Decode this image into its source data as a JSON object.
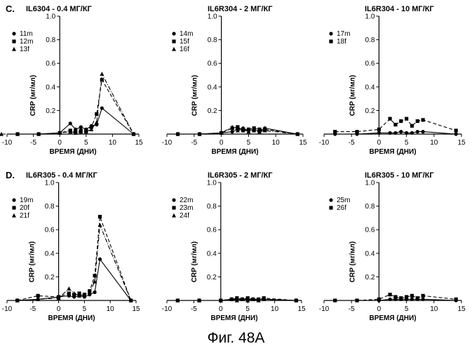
{
  "caption": "Фиг. 48А",
  "rows": [
    {
      "letter": "C."
    },
    {
      "letter": "D."
    }
  ],
  "chart_data": [
    {
      "type": "line",
      "title": "IL6304 - 0.4 МГ/КГ",
      "xlabel": "ВРЕМЯ (ДНИ)",
      "ylabel": "CRP (мг/мл)",
      "xlim": [
        -10,
        15
      ],
      "ylim": [
        0,
        1.0
      ],
      "xticks": [
        "-10",
        "-5",
        "0",
        "5",
        "10",
        "15"
      ],
      "yticks": [
        "0.2",
        "0.4",
        "0.6",
        "0.8",
        "1.0"
      ],
      "series": [
        {
          "name": "11m",
          "marker": "circle",
          "dash": "solid",
          "x": [
            -8,
            -4,
            0,
            2,
            3,
            4,
            5,
            6,
            7,
            8,
            14
          ],
          "y": [
            0.0,
            0.0,
            0.01,
            0.09,
            0.04,
            0.06,
            0.04,
            0.07,
            0.08,
            0.22,
            0.0
          ]
        },
        {
          "name": "12m",
          "marker": "square",
          "dash": "dashed",
          "x": [
            -8,
            -4,
            0,
            2,
            3,
            4,
            5,
            6,
            7,
            8,
            14
          ],
          "y": [
            0.0,
            0.0,
            0.01,
            0.03,
            0.02,
            0.03,
            0.03,
            0.06,
            0.17,
            0.46,
            0.0
          ]
        },
        {
          "name": "13f",
          "marker": "triangle",
          "dash": "dashdot",
          "x": [
            -15,
            -8,
            -4,
            0,
            2,
            3,
            4,
            5,
            6,
            7,
            8,
            14
          ],
          "y": [
            0.0,
            0.0,
            0.0,
            0.01,
            0.02,
            0.01,
            0.02,
            0.02,
            0.04,
            0.1,
            0.51,
            0.0
          ]
        }
      ]
    },
    {
      "type": "line",
      "title": "IL6R304 - 2 МГ/КГ",
      "xlabel": "ВРЕМЯ (ДНИ)",
      "ylabel": "CRP (мг/мл)",
      "xlim": [
        -10,
        15
      ],
      "ylim": [
        0,
        1.0
      ],
      "xticks": [
        "-10",
        "-5",
        "0",
        "5",
        "10",
        "15"
      ],
      "yticks": [
        "0.2",
        "0.4",
        "0.6",
        "0.8",
        "1.0"
      ],
      "series": [
        {
          "name": "14m",
          "marker": "circle",
          "dash": "solid",
          "x": [
            -8,
            -4,
            0,
            2,
            3,
            4,
            5,
            6,
            7,
            8,
            14
          ],
          "y": [
            0.0,
            0.0,
            0.01,
            0.02,
            0.04,
            0.05,
            0.03,
            0.04,
            0.02,
            0.05,
            0.0
          ]
        },
        {
          "name": "15f",
          "marker": "square",
          "dash": "dashed",
          "x": [
            -8,
            -4,
            0,
            2,
            3,
            4,
            5,
            6,
            7,
            8,
            14
          ],
          "y": [
            0.0,
            0.0,
            0.01,
            0.05,
            0.06,
            0.03,
            0.04,
            0.05,
            0.04,
            0.04,
            0.0
          ]
        },
        {
          "name": "16f",
          "marker": "triangle",
          "dash": "dashdot",
          "x": [
            -8,
            -4,
            0,
            2,
            3,
            4,
            5,
            6,
            7,
            8,
            14
          ],
          "y": [
            0.0,
            0.0,
            0.01,
            0.06,
            0.03,
            0.04,
            0.02,
            0.03,
            0.02,
            0.03,
            0.0
          ]
        }
      ]
    },
    {
      "type": "line",
      "title": "IL6R304 - 10 МГ/КГ",
      "xlabel": "ВРЕМЯ (ДНИ)",
      "ylabel": "CRP (мг/мл)",
      "xlim": [
        -10,
        15
      ],
      "ylim": [
        0,
        1.0
      ],
      "xticks": [
        "-10",
        "-5",
        "0",
        "5",
        "10",
        "15"
      ],
      "yticks": [
        "0.2",
        "0.4",
        "0.6",
        "0.8",
        "1.0"
      ],
      "series": [
        {
          "name": "17m",
          "marker": "circle",
          "dash": "solid",
          "x": [
            -8,
            -4,
            0,
            2,
            3,
            4,
            5,
            6,
            7,
            8,
            14
          ],
          "y": [
            0.0,
            0.0,
            0.01,
            0.01,
            0.01,
            0.02,
            0.01,
            0.01,
            0.02,
            0.02,
            0.0
          ]
        },
        {
          "name": "18f",
          "marker": "square",
          "dash": "dashed",
          "x": [
            -8,
            -4,
            0,
            2,
            3,
            4,
            5,
            6,
            7,
            8,
            14
          ],
          "y": [
            0.02,
            0.02,
            0.04,
            0.13,
            0.08,
            0.11,
            0.13,
            0.07,
            0.11,
            0.12,
            0.03
          ]
        }
      ]
    },
    {
      "type": "line",
      "title": "IL6R305 - 0.4 МГ/КГ",
      "xlabel": "ВРЕМЯ (ДНИ)",
      "ylabel": "CRP (мг/мл)",
      "xlim": [
        -10,
        15
      ],
      "ylim": [
        0,
        1.0
      ],
      "xticks": [
        "-10",
        "-5",
        "0",
        "5",
        "10",
        "15"
      ],
      "yticks": [
        "0.2",
        "0.4",
        "0.6",
        "0.8",
        "1.0"
      ],
      "series": [
        {
          "name": "19m",
          "marker": "circle",
          "dash": "solid",
          "x": [
            -8,
            -4,
            0,
            2,
            3,
            4,
            5,
            6,
            7,
            8,
            14
          ],
          "y": [
            0.0,
            0.01,
            0.03,
            0.04,
            0.03,
            0.04,
            0.03,
            0.05,
            0.07,
            0.35,
            0.0
          ]
        },
        {
          "name": "20f",
          "marker": "square",
          "dash": "dashed",
          "x": [
            -8,
            -4,
            0,
            2,
            3,
            4,
            5,
            6,
            7,
            8,
            14
          ],
          "y": [
            0.0,
            0.04,
            0.03,
            0.06,
            0.05,
            0.06,
            0.05,
            0.08,
            0.21,
            0.71,
            0.0
          ]
        },
        {
          "name": "21f",
          "marker": "triangle",
          "dash": "dashdot",
          "x": [
            -8,
            -4,
            0,
            2,
            3,
            4,
            5,
            6,
            7,
            8,
            14
          ],
          "y": [
            0.0,
            0.01,
            0.02,
            0.1,
            0.06,
            0.04,
            0.05,
            0.07,
            0.16,
            0.64,
            0.0
          ]
        }
      ]
    },
    {
      "type": "line",
      "title": "IL6R305 - 2 МГ/КГ",
      "xlabel": "ВРЕМЯ (ДНИ)",
      "ylabel": "CRP (мг/мл)",
      "xlim": [
        -10,
        15
      ],
      "ylim": [
        0,
        1.0
      ],
      "xticks": [
        "-10",
        "-5",
        "0",
        "5",
        "10",
        "15"
      ],
      "yticks": [
        "0.2",
        "0.4",
        "0.6",
        "0.8",
        "1.0"
      ],
      "series": [
        {
          "name": "22m",
          "marker": "circle",
          "dash": "solid",
          "x": [
            -8,
            -4,
            0,
            2,
            3,
            4,
            5,
            6,
            7,
            8,
            14
          ],
          "y": [
            0.0,
            0.0,
            0.0,
            0.01,
            0.01,
            0.01,
            0.01,
            0.01,
            0.01,
            0.01,
            0.0
          ]
        },
        {
          "name": "23m",
          "marker": "square",
          "dash": "dashed",
          "x": [
            -8,
            -4,
            0,
            2,
            3,
            4,
            5,
            6,
            7,
            8,
            14
          ],
          "y": [
            0.0,
            0.0,
            0.0,
            0.01,
            0.02,
            0.01,
            0.02,
            0.01,
            0.01,
            0.02,
            0.0
          ]
        },
        {
          "name": "24f",
          "marker": "triangle",
          "dash": "dashdot",
          "x": [
            -8,
            -4,
            0,
            2,
            3,
            4,
            5,
            6,
            7,
            8,
            14
          ],
          "y": [
            0.0,
            0.0,
            0.0,
            0.01,
            0.0,
            0.01,
            0.0,
            0.01,
            0.0,
            0.01,
            0.0
          ]
        }
      ]
    },
    {
      "type": "line",
      "title": "IL6R305 - 10 МГ/КГ",
      "xlabel": "ВРЕМЯ (ДНИ)",
      "ylabel": "CRP (мг/мл)",
      "xlim": [
        -10,
        15
      ],
      "ylim": [
        0,
        1.0
      ],
      "xticks": [
        "-10",
        "-5",
        "0",
        "5",
        "10",
        "15"
      ],
      "yticks": [
        "0.2",
        "0.4",
        "0.6",
        "0.8",
        "1.0"
      ],
      "series": [
        {
          "name": "25m",
          "marker": "circle",
          "dash": "solid",
          "x": [
            -8,
            -4,
            0,
            2,
            3,
            4,
            5,
            6,
            7,
            8,
            14
          ],
          "y": [
            0.0,
            0.0,
            0.0,
            0.01,
            0.01,
            0.01,
            0.01,
            0.01,
            0.01,
            0.01,
            0.0
          ]
        },
        {
          "name": "26f",
          "marker": "square",
          "dash": "dashed",
          "x": [
            -8,
            -4,
            0,
            2,
            3,
            4,
            5,
            6,
            7,
            8,
            14
          ],
          "y": [
            0.0,
            0.0,
            0.01,
            0.05,
            0.03,
            0.02,
            0.03,
            0.04,
            0.02,
            0.04,
            0.01
          ]
        }
      ]
    }
  ]
}
